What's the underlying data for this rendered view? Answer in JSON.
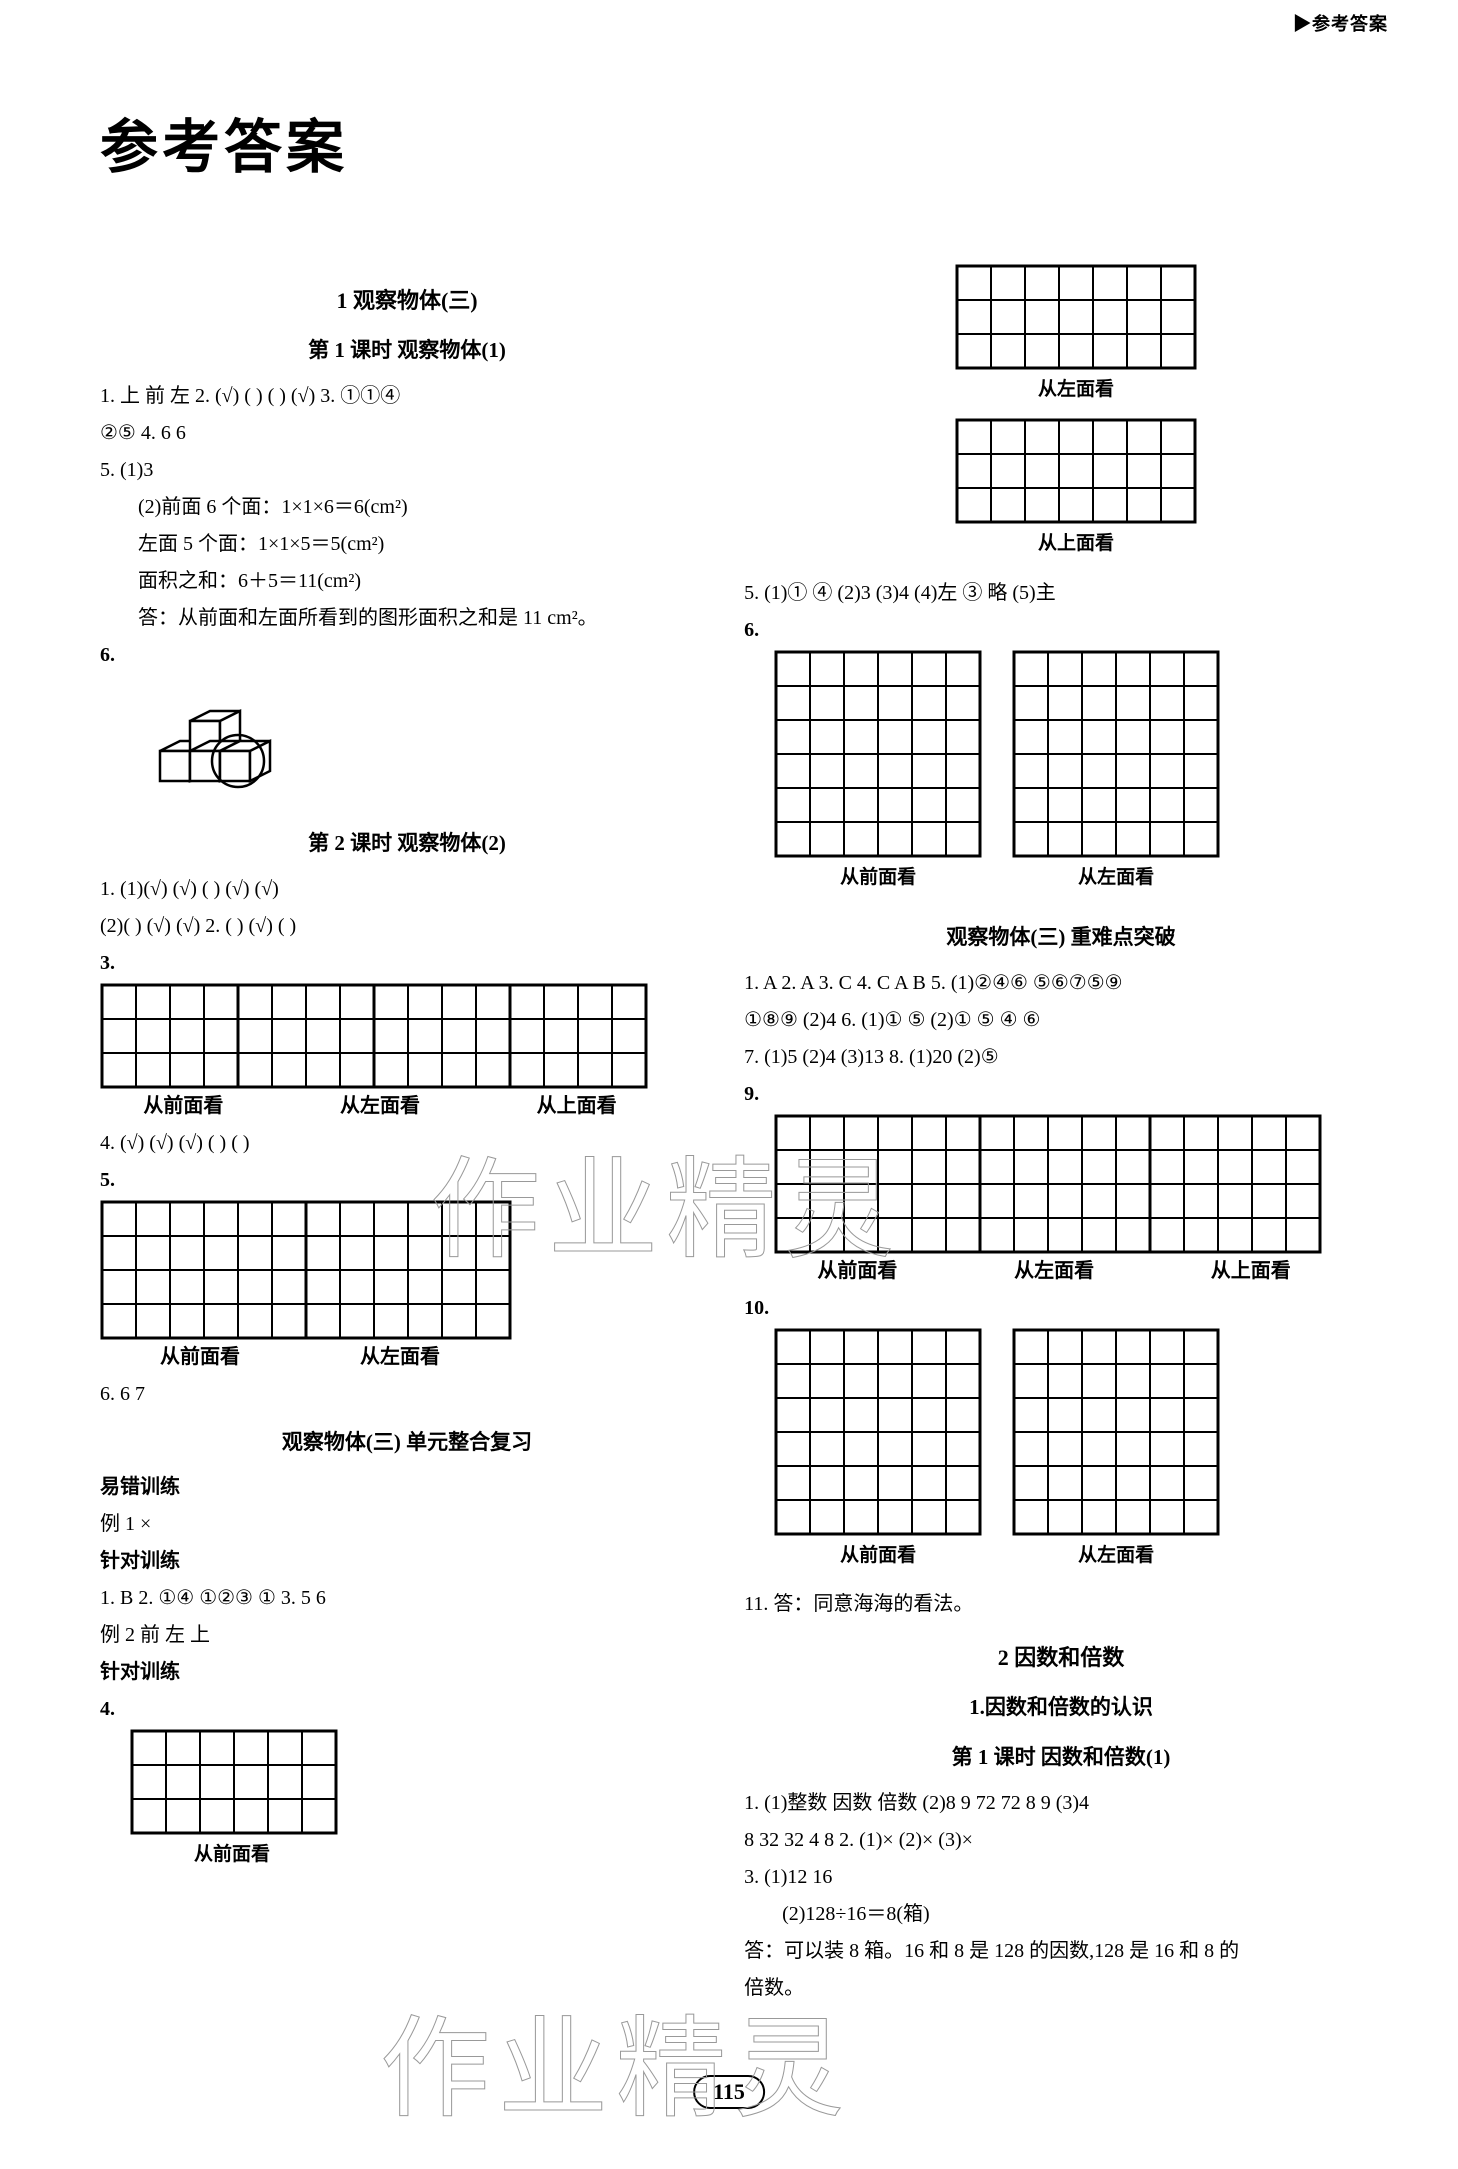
{
  "corner": "▶参考答案",
  "title": "参考答案",
  "pageNumber": "115",
  "watermark": "作业精灵",
  "circled": {
    "1": "①",
    "2": "②",
    "3": "③",
    "4": "④",
    "5": "⑤",
    "6": "⑥",
    "7": "⑦",
    "8": "⑧",
    "9": "⑨"
  },
  "style": {
    "grid_stroke": "#000000",
    "grid_stroke_width": 2,
    "grid_heavy_stroke_width": 3,
    "background": "#ffffff",
    "text_color": "#000000",
    "cell": 34
  },
  "left": {
    "unit1_title": "1  观察物体(三)",
    "lesson1_title": "第 1 课时  观察物体(1)",
    "l1_line1": "1. 上  前  左  2. (√)  (  )  (  )  (√)  3. ①①④",
    "l1_line2": "②⑤  4. 6  6",
    "l1_line3": "5.  (1)3",
    "l1_line4": "(2)前面 6 个面：1×1×6＝6(cm²)",
    "l1_line5": "左面 5 个面：1×1×5＝5(cm²)",
    "l1_line6": "面积之和：6＋5＝11(cm²)",
    "l1_line7": "答：从前面和左面所看到的图形面积之和是 11 cm²。",
    "l1_q6": "6.",
    "lesson2_title": "第 2 课时  观察物体(2)",
    "l2_line1": "1. (1)(√)  (√)  (  )  (√)  (√)",
    "l2_line2": "(2)(  )  (√)  (√)  2. (  )  (√)  (  )",
    "l2_q3": "3.",
    "l2_caps": {
      "a": "从前面看",
      "b": "从左面看",
      "c": "从上面看"
    },
    "l2_line4": "4. (√)  (√)  (√)  (  )  (  )",
    "l2_q5": "5.",
    "l2_line6": "6. 6  7",
    "review_title": "观察物体(三)  单元整合复习",
    "r_h1": "易错训练",
    "r_l1": "例 1  ×",
    "r_h2": "针对训练",
    "r_l2": "1. B  2. ①④  ①②③  ①  3. 5  6",
    "r_l3": "例 2  前  左  上",
    "r_h3": "针对训练",
    "r_q4": "4.",
    "r_cap4": "从前面看",
    "grids": {
      "q3": {
        "cols": 16,
        "rows": 3,
        "splits": [
          4,
          8,
          12
        ]
      },
      "q5": {
        "cols": 12,
        "rows": 4,
        "splits": [
          6
        ]
      },
      "q4": {
        "cols": 6,
        "rows": 3
      }
    }
  },
  "right": {
    "g_top1_cap": "从左面看",
    "g_top2_cap": "从上面看",
    "line5": "5. (1)①  ④  (2)3  (3)4  (4)左  ③  略  (5)主",
    "q6": "6.",
    "g6_caps": {
      "a": "从前面看",
      "b": "从左面看"
    },
    "hard_title": "观察物体(三)  重难点突破",
    "h_l1": "1. A  2. A  3. C  4. C  A  B  5. (1)②④⑥  ⑤⑥⑦⑤⑨",
    "h_l2": "①⑧⑨  (2)4  6. (1)①  ⑤  (2)①  ⑤  ④  ⑥",
    "h_l3": "7. (1)5  (2)4  (3)13  8. (1)20  (2)⑤",
    "q9": "9.",
    "g9_caps": {
      "a": "从前面看",
      "b": "从左面看",
      "c": "从上面看"
    },
    "q10": "10.",
    "g10_caps": {
      "a": "从前面看",
      "b": "从左面看"
    },
    "line11": "11. 答：同意海海的看法。",
    "unit2_title": "2  因数和倍数",
    "sub2_1": "1.因数和倍数的认识",
    "lesson2_1": "第 1 课时  因数和倍数(1)",
    "u2_l1": "1. (1)整数  因数  倍数  (2)8  9  72  72  8  9  (3)4",
    "u2_l2": "8  32  32  4  8  2. (1)×  (2)×  (3)×",
    "u2_l3": "3.  (1)12  16",
    "u2_l4": "(2)128÷16＝8(箱)",
    "u2_l5": "答：可以装 8 箱。16 和 8 是 128 的因数,128 是 16 和 8 的",
    "u2_l6": "倍数。",
    "grids": {
      "top1": {
        "cols": 7,
        "rows": 3
      },
      "top2": {
        "cols": 7,
        "rows": 3
      },
      "g6a": {
        "cols": 6,
        "rows": 6
      },
      "g6b": {
        "cols": 6,
        "rows": 6
      },
      "g9": {
        "cols": 16,
        "rows": 4,
        "splits": [
          6,
          11
        ]
      },
      "g10a": {
        "cols": 6,
        "rows": 6
      },
      "g10b": {
        "cols": 6,
        "rows": 6
      }
    }
  }
}
